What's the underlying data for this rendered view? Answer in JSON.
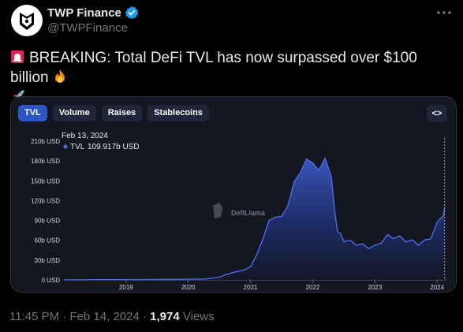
{
  "tweet": {
    "author_name": "TWP Finance",
    "author_handle": "@TWPFinance",
    "text_line1": "BREAKING: Total DeFi TVL has now surpassed over $100 billion",
    "timestamp": "11:45 PM · Feb 14, 2024",
    "separator": " · ",
    "views_count": "1,974",
    "views_label": " Views"
  },
  "card": {
    "tabs": [
      {
        "label": "TVL",
        "active": true
      },
      {
        "label": "Volume",
        "active": false
      },
      {
        "label": "Raises",
        "active": false
      },
      {
        "label": "Stablecoins",
        "active": false
      }
    ],
    "expand_label": "<>",
    "watermark": "DefiLlama"
  },
  "chart_data": {
    "type": "area",
    "title": "",
    "xlabel": "",
    "ylabel": "",
    "x_start": "2018",
    "x_end": "Feb 2024",
    "xticks": [
      "2019",
      "2020",
      "2021",
      "2022",
      "2023",
      "2024"
    ],
    "yticks": [
      "0 USD",
      "30b USD",
      "60b USD",
      "90b USD",
      "120b USD",
      "150b USD",
      "180b USD",
      "210b USD"
    ],
    "ytick_values": [
      0,
      30,
      60,
      90,
      120,
      150,
      180,
      210
    ],
    "ylim": [
      0,
      210
    ],
    "tooltip_date": "Feb 13, 2024",
    "tooltip_label": "TVL",
    "tooltip_value": "109.917b USD",
    "series": [
      {
        "name": "TVL",
        "color": "#4a6de4",
        "x": [
          2018.0,
          2018.5,
          2019.0,
          2019.5,
          2020.0,
          2020.3,
          2020.5,
          2020.6,
          2020.75,
          2020.9,
          2021.0,
          2021.1,
          2021.2,
          2021.3,
          2021.4,
          2021.5,
          2021.6,
          2021.7,
          2021.8,
          2021.9,
          2022.0,
          2022.1,
          2022.2,
          2022.3,
          2022.35,
          2022.4,
          2022.45,
          2022.5,
          2022.6,
          2022.7,
          2022.8,
          2022.9,
          2023.0,
          2023.1,
          2023.2,
          2023.3,
          2023.4,
          2023.5,
          2023.6,
          2023.7,
          2023.8,
          2023.9,
          2024.0,
          2024.1,
          2024.12
        ],
        "values": [
          0.2,
          0.3,
          0.4,
          0.6,
          0.9,
          1.5,
          4,
          8,
          12,
          15,
          20,
          38,
          62,
          90,
          95,
          96,
          110,
          150,
          160,
          185,
          175,
          168,
          182,
          158,
          105,
          75,
          68,
          60,
          58,
          55,
          52,
          50,
          50,
          58,
          66,
          65,
          64,
          60,
          58,
          55,
          58,
          65,
          85,
          100,
          110
        ]
      }
    ]
  }
}
